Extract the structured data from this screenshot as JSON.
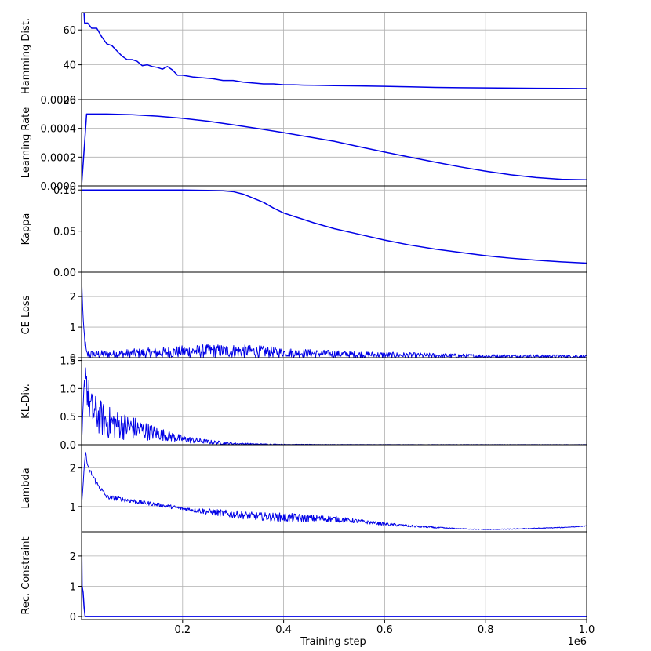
{
  "chart_data": {
    "type": "line",
    "xlabel": "Training step",
    "x_multiplier_label": "1e6",
    "xlim": [
      0,
      1.0
    ],
    "x_ticks": [
      0.2,
      0.4,
      0.6,
      0.8,
      1.0
    ],
    "x_tick_labels": [
      "0.2",
      "0.4",
      "0.6",
      "0.8",
      "1.0"
    ],
    "grid": true,
    "line_color": "#0000e6",
    "panels": [
      {
        "ylabel": "Hamming Dist.",
        "ylim": [
          20,
          70
        ],
        "y_ticks": [
          20,
          40,
          60
        ],
        "y_tick_labels": [
          "20",
          "40",
          "60"
        ],
        "noisy": false,
        "x": [
          0.0,
          0.006,
          0.012,
          0.02,
          0.03,
          0.04,
          0.05,
          0.06,
          0.07,
          0.08,
          0.09,
          0.1,
          0.11,
          0.12,
          0.13,
          0.14,
          0.15,
          0.16,
          0.17,
          0.18,
          0.19,
          0.2,
          0.22,
          0.24,
          0.26,
          0.28,
          0.3,
          0.32,
          0.34,
          0.36,
          0.38,
          0.4,
          0.42,
          0.44,
          0.46,
          0.48,
          0.5,
          0.55,
          0.6,
          0.65,
          0.7,
          0.75,
          0.8,
          0.85,
          0.9,
          0.95,
          1.0
        ],
        "values": [
          95,
          64,
          64,
          61,
          61,
          56,
          52,
          51,
          48,
          45,
          43,
          43,
          42,
          39.5,
          40,
          39,
          38.5,
          37.5,
          39,
          37,
          34,
          34,
          33,
          32.5,
          32,
          31,
          31,
          30,
          29.5,
          29,
          29,
          28.5,
          28.5,
          28.3,
          28.2,
          28.1,
          28,
          27.8,
          27.6,
          27.3,
          27,
          26.8,
          26.7,
          26.6,
          26.5,
          26.4,
          26.3
        ]
      },
      {
        "ylabel": "Learning Rate",
        "ylim": [
          0,
          0.0006
        ],
        "y_ticks": [
          0,
          0.0002,
          0.0004,
          0.0006
        ],
        "y_tick_labels": [
          "0.0000",
          "0.0002",
          "0.0004",
          "0.0006"
        ],
        "noisy": false,
        "x": [
          0.0,
          0.01,
          0.05,
          0.1,
          0.15,
          0.2,
          0.25,
          0.3,
          0.35,
          0.4,
          0.45,
          0.5,
          0.55,
          0.6,
          0.65,
          0.7,
          0.75,
          0.8,
          0.85,
          0.9,
          0.95,
          1.0
        ],
        "values": [
          0.0,
          0.0005,
          0.0005,
          0.000495,
          0.000485,
          0.00047,
          0.00045,
          0.000425,
          0.000398,
          0.00037,
          0.00034,
          0.00031,
          0.000272,
          0.000235,
          0.0002,
          0.000165,
          0.000132,
          0.000102,
          7.7e-05,
          5.8e-05,
          4.6e-05,
          4.2e-05
        ]
      },
      {
        "ylabel": "Kappa",
        "ylim": [
          0,
          0.105
        ],
        "y_ticks": [
          0,
          0.05,
          0.1
        ],
        "y_tick_labels": [
          "0.00",
          "0.05",
          "0.10"
        ],
        "noisy": false,
        "x": [
          0.0,
          0.05,
          0.1,
          0.15,
          0.2,
          0.25,
          0.28,
          0.3,
          0.32,
          0.34,
          0.36,
          0.38,
          0.4,
          0.43,
          0.46,
          0.5,
          0.55,
          0.6,
          0.65,
          0.7,
          0.75,
          0.8,
          0.85,
          0.9,
          0.95,
          1.0
        ],
        "values": [
          0.1,
          0.1,
          0.1,
          0.1,
          0.1,
          0.0995,
          0.099,
          0.098,
          0.095,
          0.09,
          0.085,
          0.078,
          0.072,
          0.066,
          0.06,
          0.053,
          0.046,
          0.039,
          0.033,
          0.028,
          0.024,
          0.02,
          0.017,
          0.0145,
          0.0125,
          0.011
        ]
      },
      {
        "ylabel": "CE Loss",
        "ylim": [
          0,
          2.8
        ],
        "y_ticks": [
          0,
          1,
          2
        ],
        "y_tick_labels": [
          "0",
          "1",
          "2"
        ],
        "noisy": true,
        "x": [
          0.0,
          0.003,
          0.006,
          0.01,
          0.05,
          0.1,
          0.15,
          0.2,
          0.25,
          0.3,
          0.35,
          0.4,
          0.5,
          0.6,
          0.7,
          0.8,
          0.9,
          1.0
        ],
        "values": [
          2.75,
          1.2,
          0.6,
          0.1,
          0.12,
          0.14,
          0.16,
          0.2,
          0.22,
          0.22,
          0.2,
          0.17,
          0.12,
          0.09,
          0.07,
          0.05,
          0.05,
          0.04
        ],
        "noise_band": [
          0.05,
          0.1,
          0.2,
          0.15,
          0.12,
          0.15,
          0.18,
          0.2,
          0.22,
          0.22,
          0.2,
          0.15,
          0.12,
          0.1,
          0.08,
          0.06,
          0.06,
          0.05
        ]
      },
      {
        "ylabel": "KL-Div.",
        "ylim": [
          0,
          1.55
        ],
        "y_ticks": [
          0,
          0.5,
          1.0,
          1.5
        ],
        "y_tick_labels": [
          "0.0",
          "0.5",
          "1.0",
          "1.5"
        ],
        "noisy": true,
        "x": [
          0.0,
          0.004,
          0.008,
          0.012,
          0.02,
          0.05,
          0.1,
          0.15,
          0.2,
          0.25,
          0.3,
          0.35,
          0.4,
          0.5,
          0.6,
          0.7,
          0.8,
          0.9,
          1.0
        ],
        "values": [
          0.0,
          0.8,
          1.4,
          0.9,
          0.6,
          0.4,
          0.3,
          0.2,
          0.1,
          0.05,
          0.02,
          0.01,
          0.005,
          0.003,
          0.002,
          0.002,
          0.002,
          0.002,
          0.002
        ],
        "noise_band": [
          0.0,
          0.2,
          0.2,
          0.4,
          0.35,
          0.3,
          0.22,
          0.12,
          0.07,
          0.04,
          0.02,
          0.01,
          0.005,
          0.003,
          0.002,
          0.002,
          0.002,
          0.002,
          0.002
        ]
      },
      {
        "ylabel": "Lambda",
        "ylim": [
          0.35,
          2.6
        ],
        "y_ticks": [
          1,
          2
        ],
        "y_tick_labels": [
          "1",
          "2"
        ],
        "noisy": true,
        "x": [
          0.0,
          0.004,
          0.008,
          0.012,
          0.02,
          0.03,
          0.05,
          0.1,
          0.15,
          0.2,
          0.25,
          0.3,
          0.35,
          0.4,
          0.45,
          0.5,
          0.55,
          0.6,
          0.65,
          0.7,
          0.75,
          0.8,
          0.85,
          0.9,
          0.95,
          1.0
        ],
        "values": [
          1.0,
          1.8,
          2.45,
          2.0,
          1.85,
          1.6,
          1.25,
          1.15,
          1.05,
          0.95,
          0.87,
          0.8,
          0.75,
          0.72,
          0.7,
          0.68,
          0.62,
          0.55,
          0.5,
          0.46,
          0.43,
          0.41,
          0.42,
          0.44,
          0.46,
          0.5
        ],
        "noise_band": [
          0.0,
          0.05,
          0.05,
          0.08,
          0.08,
          0.07,
          0.06,
          0.06,
          0.05,
          0.05,
          0.08,
          0.1,
          0.1,
          0.12,
          0.1,
          0.08,
          0.05,
          0.04,
          0.03,
          0.02,
          0.01,
          0.01,
          0.01,
          0.01,
          0.01,
          0.01
        ]
      },
      {
        "ylabel": "Rec. Constraint",
        "ylim": [
          -0.1,
          2.8
        ],
        "y_ticks": [
          0,
          1,
          2
        ],
        "y_tick_labels": [
          "0",
          "1",
          "2"
        ],
        "noisy": false,
        "x": [
          0.0,
          0.001,
          0.003,
          0.005,
          0.007,
          0.01,
          0.2,
          0.4,
          0.6,
          0.8,
          1.0
        ],
        "values": [
          2.7,
          1.0,
          0.8,
          0.3,
          0.0,
          0.0,
          0.0,
          0.0,
          0.0,
          0.0,
          0.0
        ]
      }
    ]
  }
}
